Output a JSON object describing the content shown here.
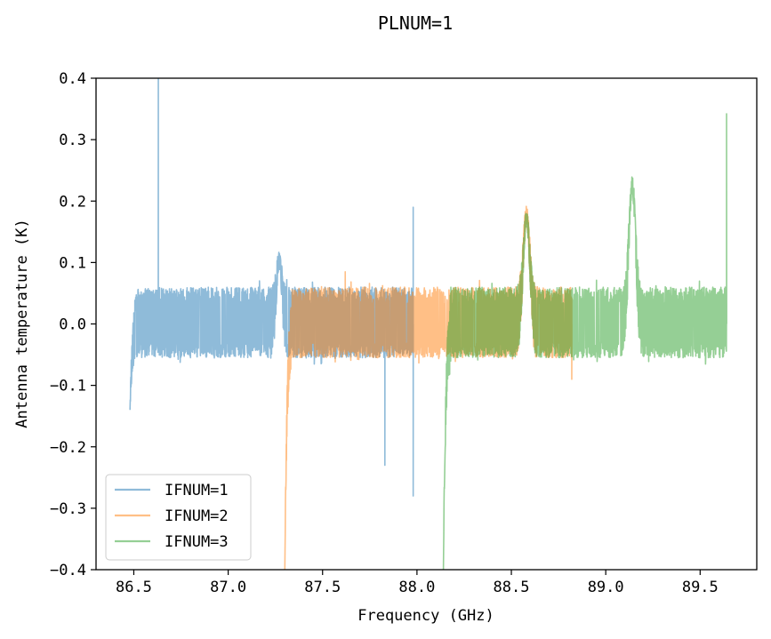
{
  "chart_data": {
    "type": "line",
    "title": "PLNUM=1",
    "xlabel": "Frequency (GHz)",
    "ylabel": "Antenna temperature (K)",
    "xlim": [
      86.3,
      89.8
    ],
    "ylim": [
      -0.4,
      0.4
    ],
    "xticks": [
      "86.5",
      "87.0",
      "87.5",
      "88.0",
      "88.5",
      "89.0",
      "89.5"
    ],
    "yticks": [
      "0.4",
      "0.3",
      "0.2",
      "0.1",
      "0.0",
      "−0.1",
      "−0.2",
      "−0.3",
      "−0.4"
    ],
    "grid": false,
    "legend_position": "lower-left",
    "series": [
      {
        "name": "IFNUM=1",
        "color": "#1f77b4",
        "opacity": 0.5,
        "x_range": [
          86.48,
          87.98
        ],
        "noise_band": [
          -0.055,
          0.06
        ],
        "features": [
          {
            "type": "dip",
            "x": 86.48,
            "y": -0.14
          },
          {
            "type": "spike",
            "x": 86.63,
            "y": 0.4
          },
          {
            "type": "bump",
            "x": 87.27,
            "y": 0.105
          },
          {
            "type": "spike",
            "x": 87.83,
            "y": -0.23
          },
          {
            "type": "spike",
            "x": 87.98,
            "y": 0.19
          },
          {
            "type": "spike",
            "x": 87.98,
            "y": -0.28
          }
        ]
      },
      {
        "name": "IFNUM=2",
        "color": "#ff7f0e",
        "opacity": 0.5,
        "x_range": [
          87.3,
          88.82
        ],
        "noise_band": [
          -0.055,
          0.06
        ],
        "features": [
          {
            "type": "edge-dip",
            "x": 87.3,
            "y": -0.4
          },
          {
            "type": "spike",
            "x": 87.62,
            "y": 0.085
          },
          {
            "type": "line",
            "x": 88.58,
            "y": 0.178
          },
          {
            "type": "spike",
            "x": 88.82,
            "y": -0.09
          }
        ]
      },
      {
        "name": "IFNUM=3",
        "color": "#2ca02c",
        "opacity": 0.5,
        "x_range": [
          88.14,
          89.64
        ],
        "noise_band": [
          -0.055,
          0.06
        ],
        "features": [
          {
            "type": "edge-dip",
            "x": 88.14,
            "y": -0.4
          },
          {
            "type": "line",
            "x": 88.58,
            "y": 0.17
          },
          {
            "type": "line",
            "x": 89.14,
            "y": 0.225
          },
          {
            "type": "spike",
            "x": 89.64,
            "y": 0.342
          }
        ]
      }
    ]
  }
}
